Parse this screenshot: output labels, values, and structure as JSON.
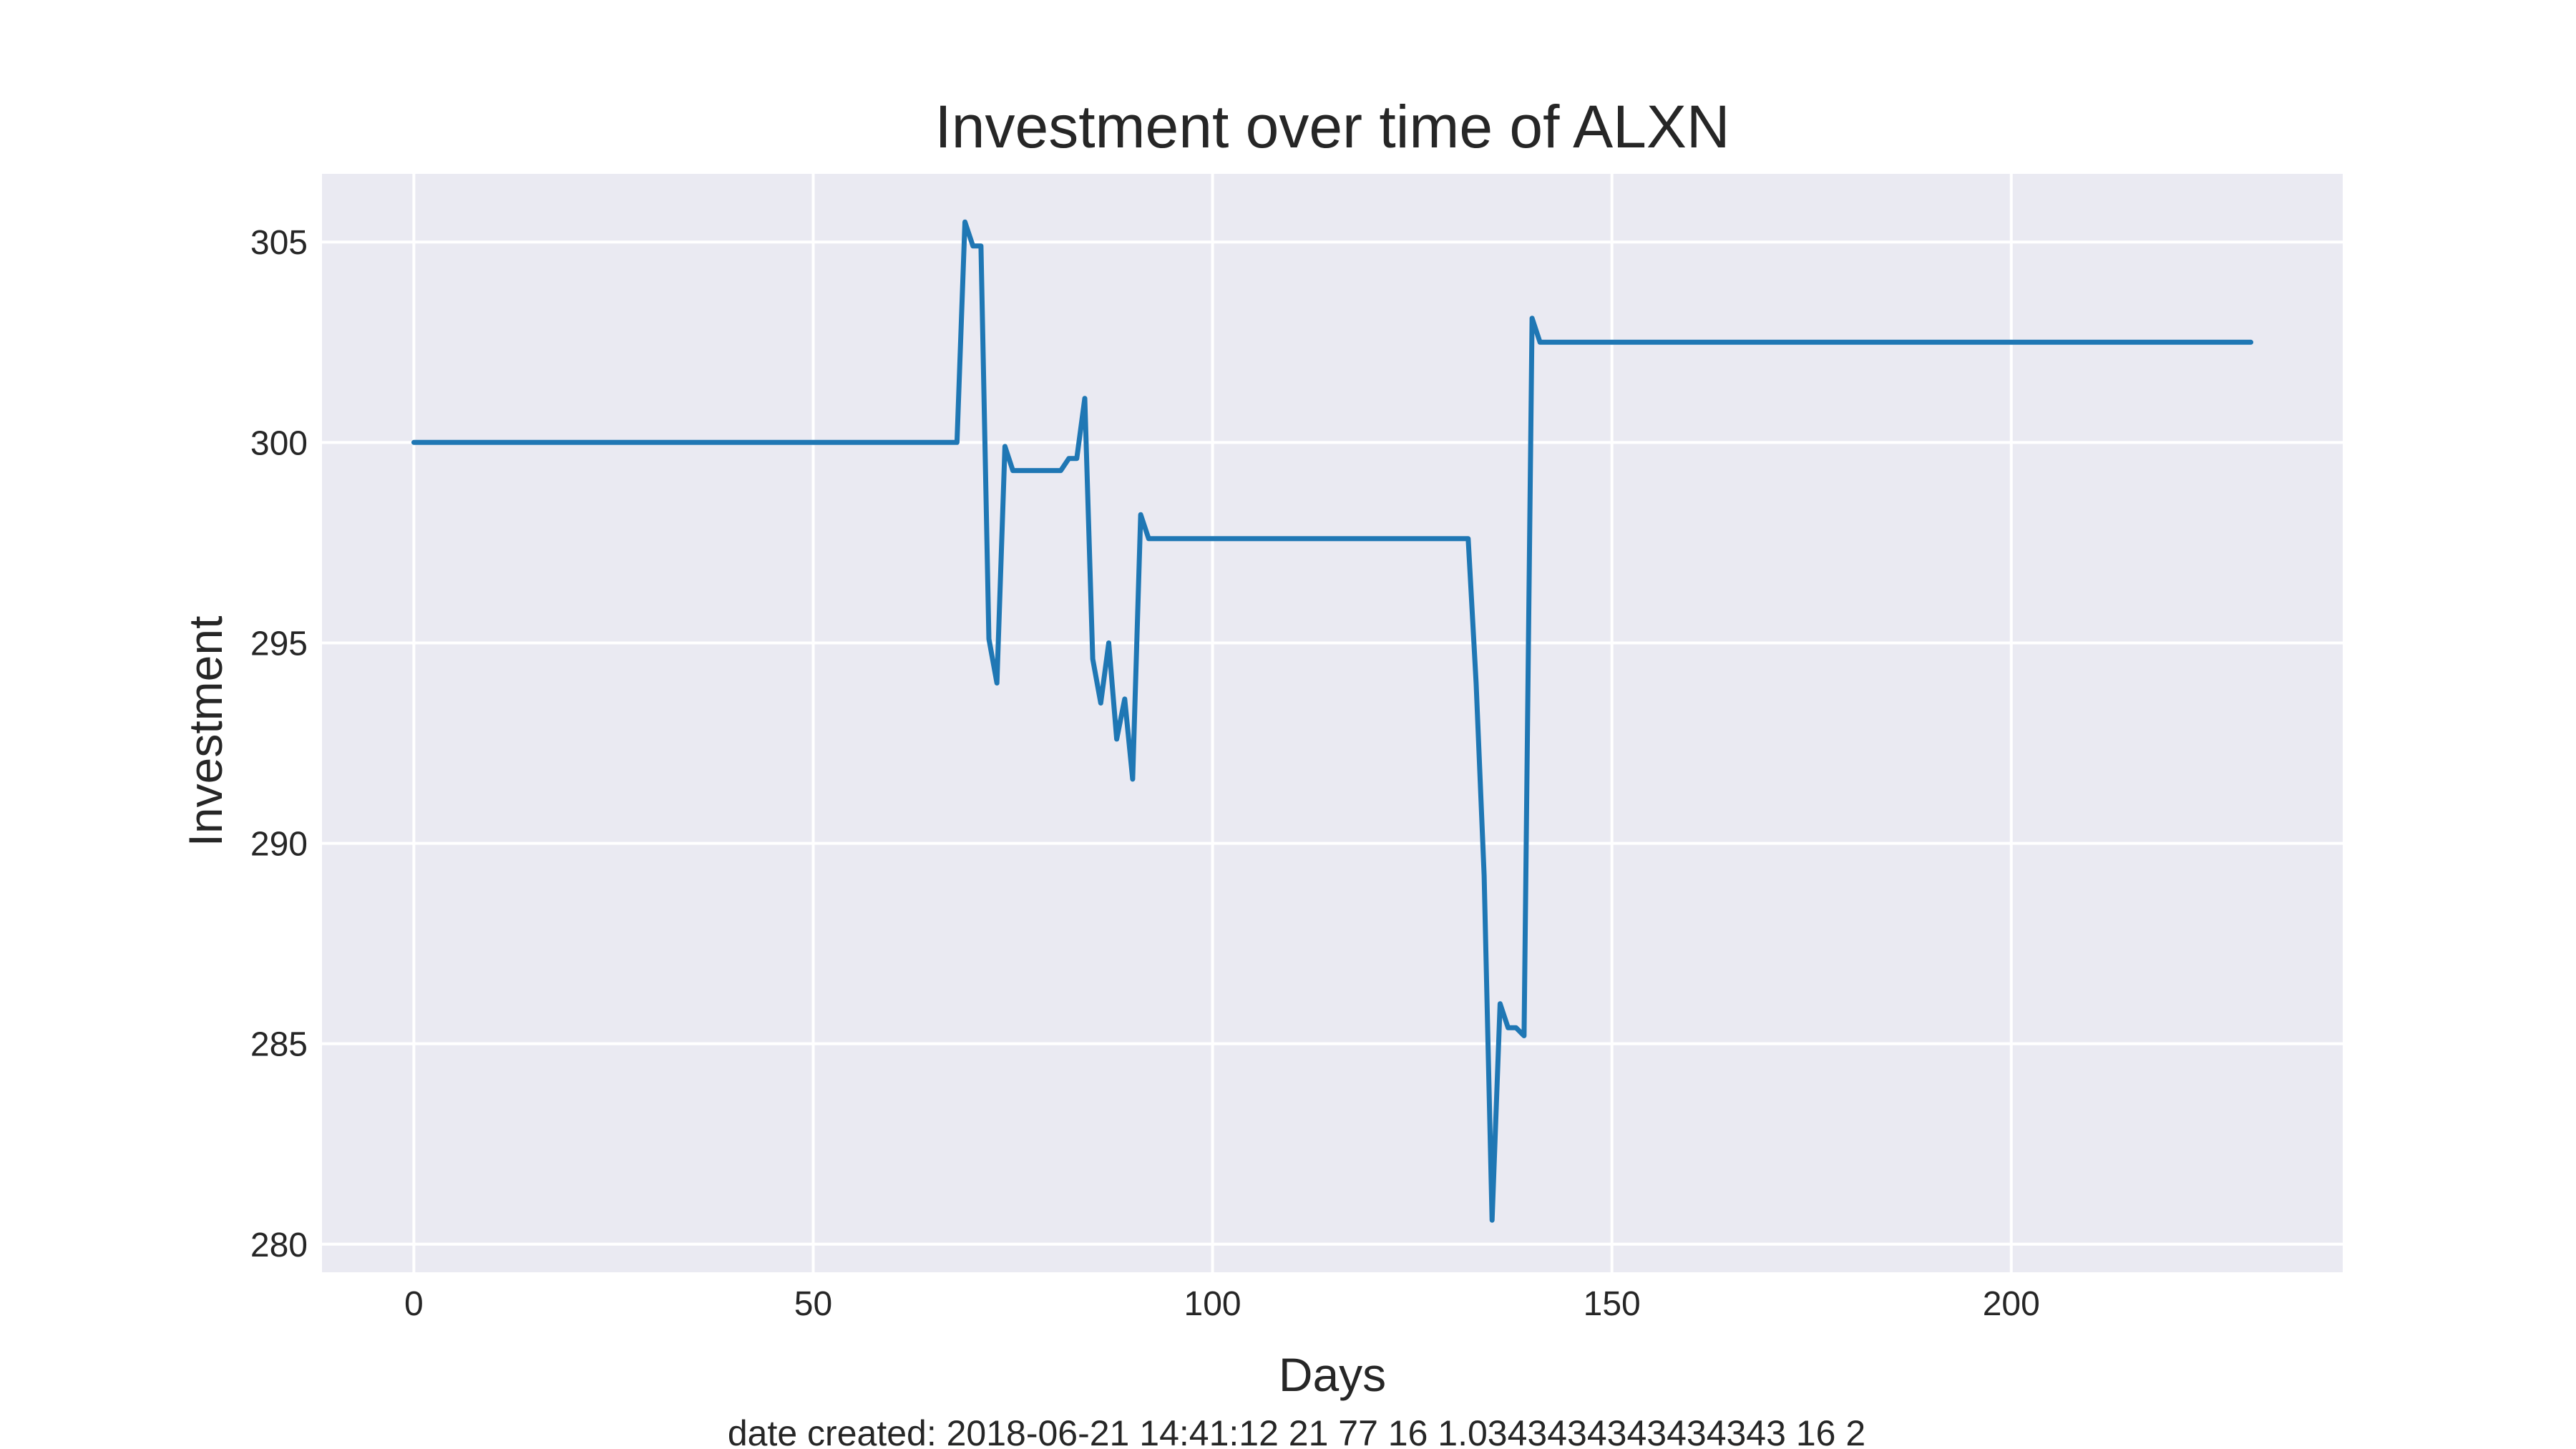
{
  "chart_data": {
    "type": "line",
    "title": "Investment over time of ALXN",
    "xlabel": "Days",
    "ylabel": "Investment",
    "footer": "date created: 2018-06-21 14:41:12 21 77 16 1.0343434343434343 16 2",
    "xlim": [
      -11.5,
      241.5
    ],
    "ylim": [
      279.3,
      306.7
    ],
    "xticks": [
      0,
      50,
      100,
      150,
      200
    ],
    "yticks": [
      280,
      285,
      290,
      295,
      300,
      305
    ],
    "grid": true,
    "background_color": "#eaeaf2",
    "grid_color": "#ffffff",
    "series": [
      {
        "color": "#1f77b4",
        "x": [
          0,
          68,
          69,
          70,
          71,
          72,
          73,
          74,
          75,
          76,
          77,
          78,
          79,
          80,
          81,
          82,
          83,
          84,
          85,
          86,
          87,
          88,
          89,
          90,
          91,
          92,
          93,
          94,
          95,
          100,
          110,
          120,
          130,
          132,
          133,
          134,
          135,
          136,
          137,
          138,
          139,
          140,
          141,
          142,
          150,
          200,
          230
        ],
        "y": [
          300.0,
          300.0,
          305.5,
          304.9,
          304.9,
          295.1,
          294.0,
          299.9,
          299.3,
          299.3,
          299.3,
          299.3,
          299.3,
          299.3,
          299.3,
          299.6,
          299.6,
          301.1,
          294.6,
          293.5,
          295.0,
          292.6,
          293.6,
          291.6,
          298.2,
          297.6,
          297.6,
          297.6,
          297.6,
          297.6,
          297.6,
          297.6,
          297.6,
          297.6,
          294.0,
          289.2,
          280.6,
          286.0,
          285.4,
          285.4,
          285.2,
          303.1,
          302.5,
          302.5,
          302.5,
          302.5,
          302.5
        ]
      }
    ]
  }
}
